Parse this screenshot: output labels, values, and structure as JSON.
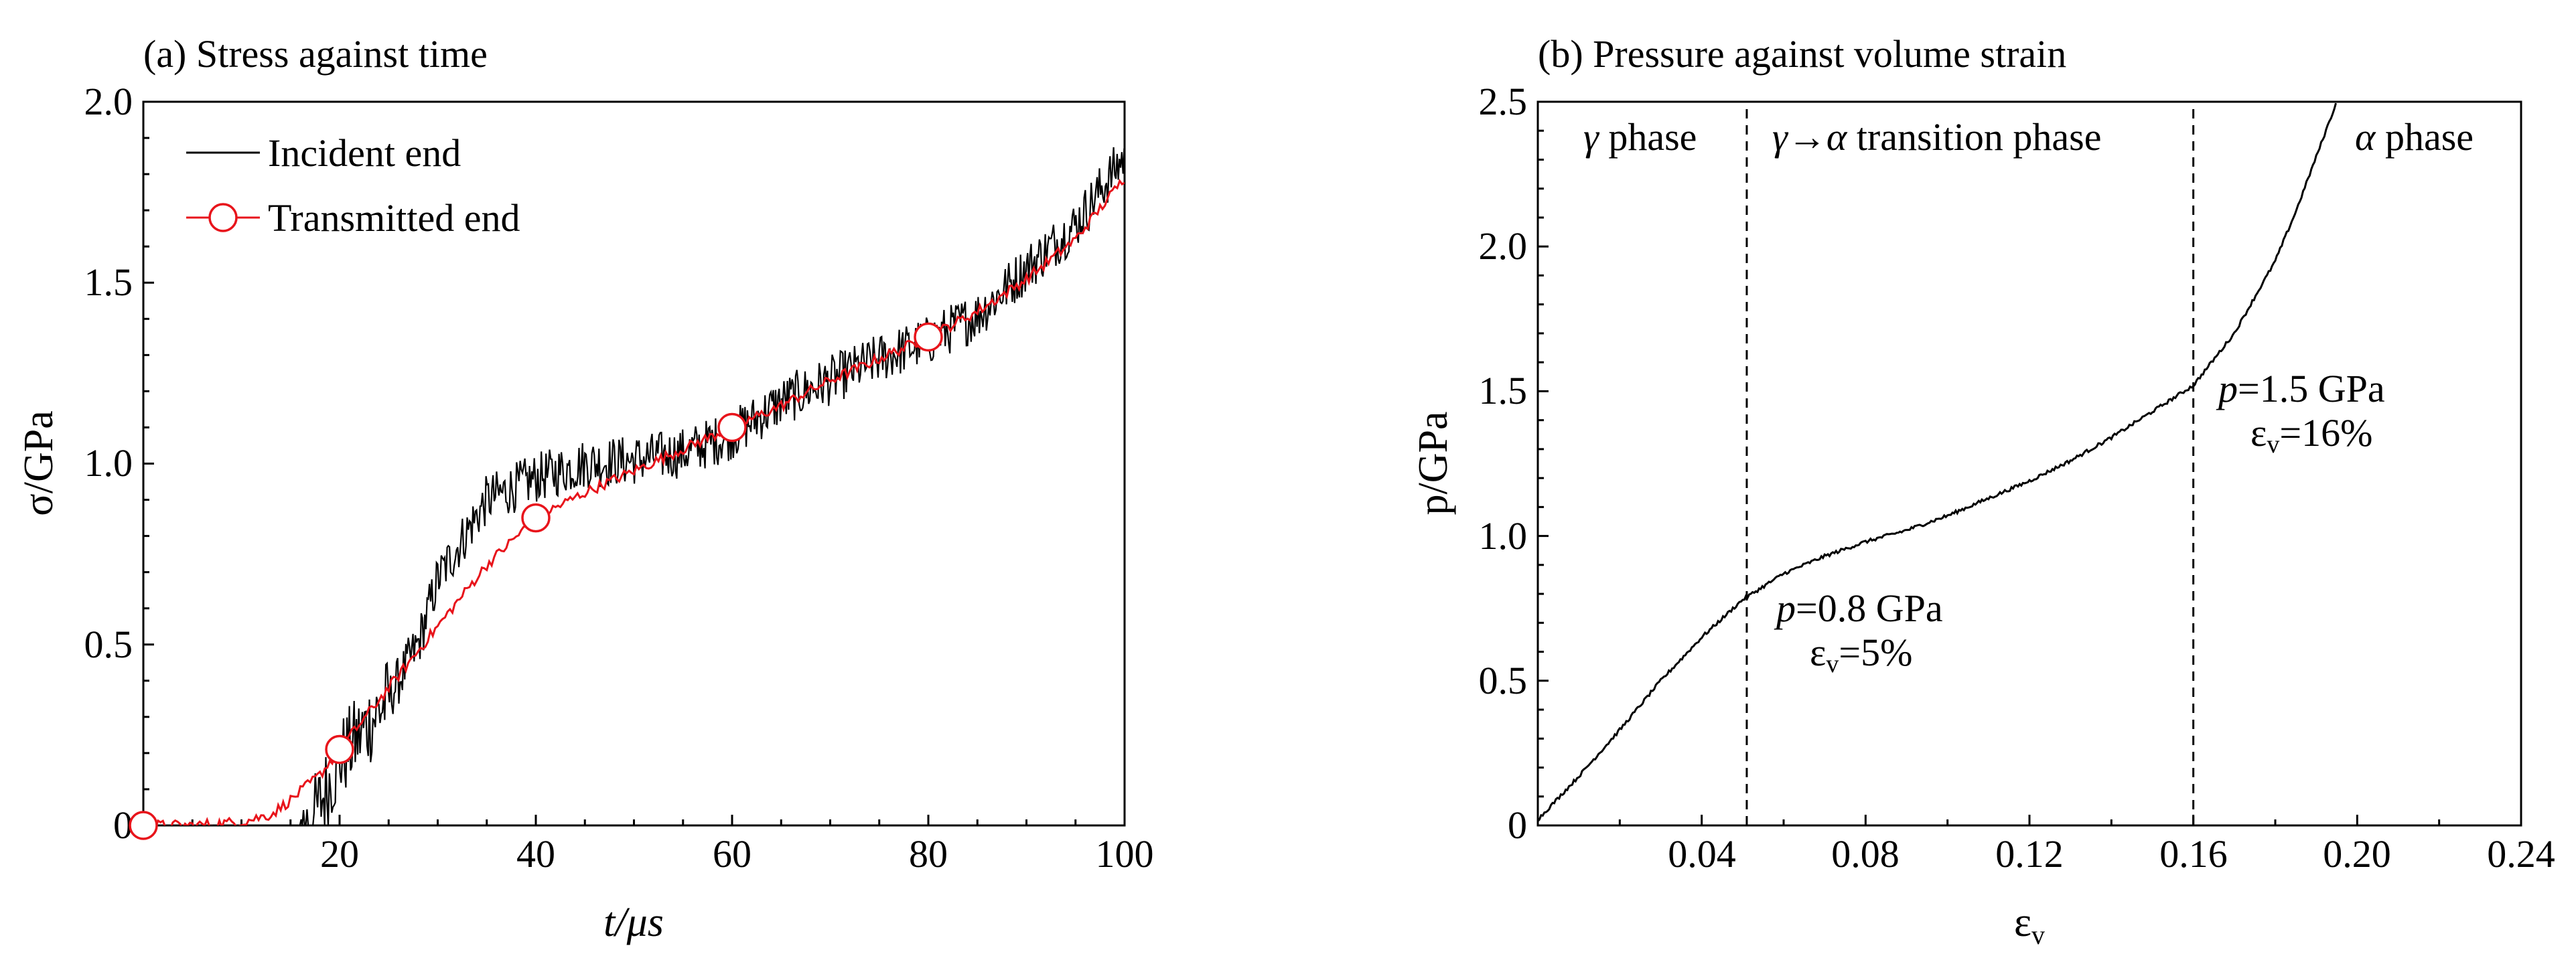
{
  "chart_data": [
    {
      "type": "line",
      "title": "(a) Stress against time",
      "xlabel": "t/μs",
      "ylabel": "σ/GPa",
      "xlim": [
        0,
        100
      ],
      "ylim": [
        0,
        2.0
      ],
      "xticks": [
        20,
        40,
        60,
        80,
        100
      ],
      "xtick_labels": [
        "20",
        "40",
        "60",
        "80",
        "100"
      ],
      "yticks": [
        0,
        0.5,
        1.0,
        1.5,
        2.0
      ],
      "ytick_labels": [
        "0",
        "0.5",
        "1.0",
        "1.5",
        "2.0"
      ],
      "grid": false,
      "legend_position": "top-left",
      "colors": {
        "incident": "#000000",
        "transmitted": "#e8141b"
      },
      "series": [
        {
          "name": "Incident end",
          "x": [
            0,
            10,
            15,
            17,
            20,
            25,
            28,
            30,
            35,
            40,
            45,
            50,
            55,
            60,
            65,
            70,
            75,
            80,
            85,
            90,
            95,
            100
          ],
          "values": [
            0,
            0,
            0,
            0,
            0.18,
            0.35,
            0.5,
            0.68,
            0.9,
            0.96,
            1.0,
            1.01,
            1.03,
            1.08,
            1.17,
            1.23,
            1.29,
            1.34,
            1.41,
            1.54,
            1.66,
            1.85
          ]
        },
        {
          "name": "Transmitted end",
          "x": [
            0,
            5,
            10,
            13,
            15,
            18,
            20,
            25,
            30,
            35,
            40,
            45,
            50,
            55,
            60,
            65,
            70,
            75,
            80,
            85,
            90,
            95,
            100
          ],
          "values": [
            0,
            0.0,
            0.01,
            0.03,
            0.07,
            0.14,
            0.21,
            0.38,
            0.55,
            0.72,
            0.85,
            0.92,
            0.98,
            1.04,
            1.1,
            1.16,
            1.23,
            1.29,
            1.35,
            1.42,
            1.51,
            1.62,
            1.79
          ]
        }
      ],
      "markers": {
        "series": "Transmitted end",
        "x": [
          0,
          20,
          40,
          60,
          80
        ],
        "values": [
          0,
          0.21,
          0.85,
          1.1,
          1.35
        ]
      }
    },
    {
      "type": "line",
      "title": "(b) Pressure against volume strain",
      "xlabel": "εv",
      "ylabel": "p/GPa",
      "xlim": [
        0,
        0.24
      ],
      "ylim": [
        0,
        2.5
      ],
      "xticks": [
        0.04,
        0.08,
        0.12,
        0.16,
        0.2,
        0.24
      ],
      "xtick_labels": [
        "0.04",
        "0.08",
        "0.12",
        "0.16",
        "0.20",
        "0.24"
      ],
      "yticks": [
        0,
        0.5,
        1.0,
        1.5,
        2.0,
        2.5
      ],
      "ytick_labels": [
        "0",
        "0.5",
        "1.0",
        "1.5",
        "2.0",
        "2.5"
      ],
      "grid": false,
      "colors": {
        "curve": "#000000"
      },
      "series": [
        {
          "x": [
            0,
            0.01,
            0.02,
            0.03,
            0.04,
            0.05,
            0.06,
            0.07,
            0.08,
            0.09,
            0.1,
            0.11,
            0.12,
            0.13,
            0.14,
            0.15,
            0.16,
            0.17,
            0.18,
            0.185,
            0.19,
            0.195
          ],
          "values": [
            0.02,
            0.17,
            0.33,
            0.5,
            0.65,
            0.78,
            0.87,
            0.93,
            0.98,
            1.02,
            1.07,
            1.13,
            1.19,
            1.26,
            1.34,
            1.43,
            1.52,
            1.7,
            1.95,
            2.12,
            2.31,
            2.5
          ]
        }
      ],
      "vlines": [
        0.051,
        0.16
      ],
      "phase_labels": {
        "gamma_symbol": "γ",
        "gamma_text": " phase",
        "transition_gamma": "γ",
        "transition_arrow": "→",
        "transition_alpha": "α",
        "transition_text": " transition phase",
        "alpha_symbol": "α",
        "alpha_text": " phase"
      },
      "annotations": [
        {
          "p_symbol": "p",
          "p_text": "=0.8 GPa",
          "eps_symbol": "ε",
          "eps_sub": "v",
          "eps_text": "=5%"
        },
        {
          "p_symbol": "p",
          "p_text": "=1.5 GPa",
          "eps_symbol": "ε",
          "eps_sub": "v",
          "eps_text": "=16%"
        }
      ]
    }
  ]
}
